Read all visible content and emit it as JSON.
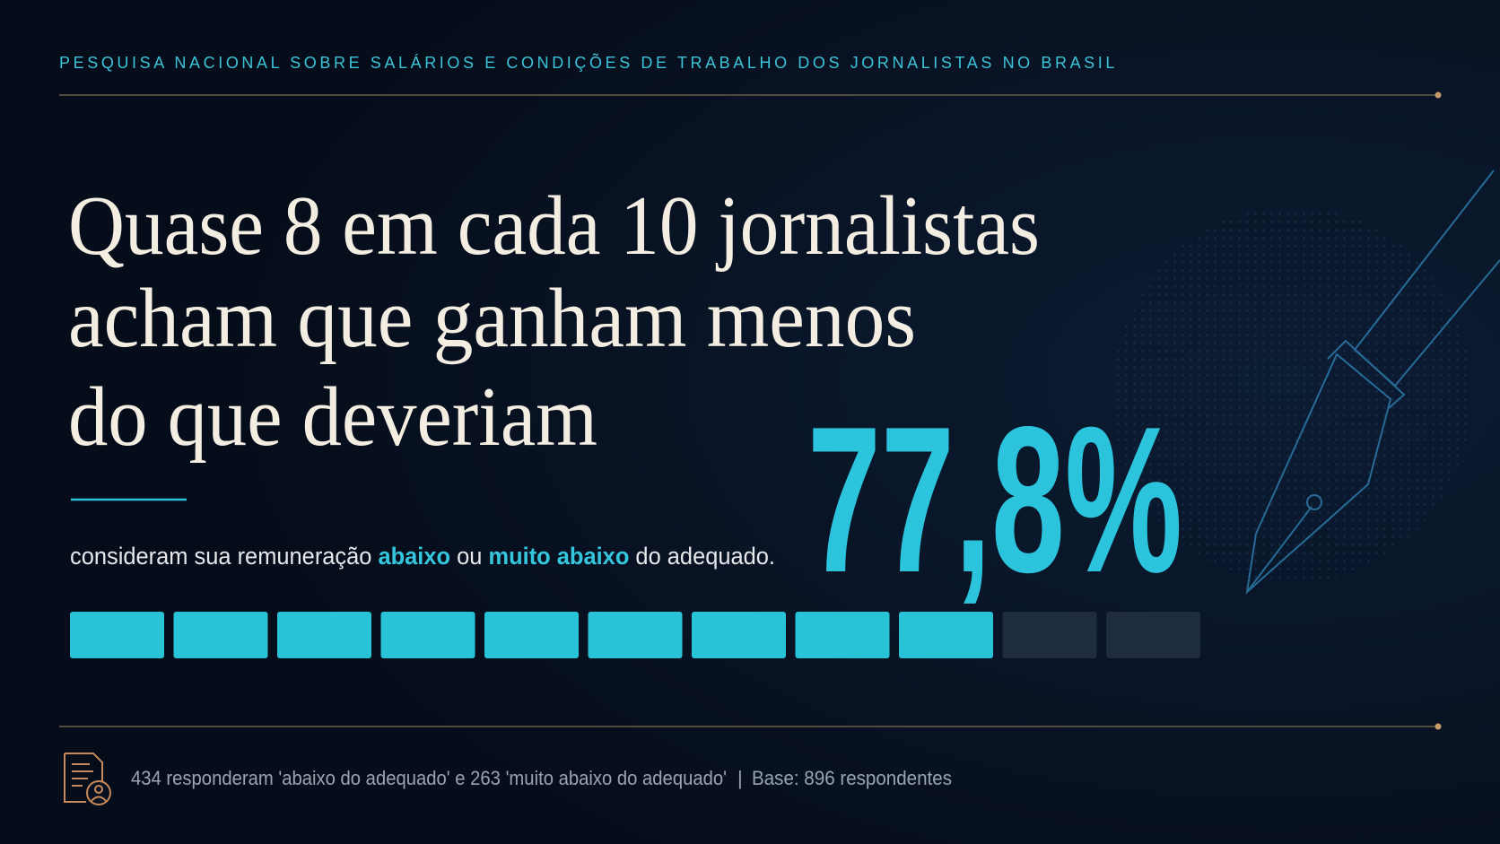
{
  "header": {
    "title": "PESQUISA NACIONAL SOBRE SALÁRIOS E CONDIÇÕES DE TRABALHO DOS JORNALISTAS NO BRASIL"
  },
  "headline": {
    "lines": [
      "Quase 8 em cada 10 jornalistas",
      "acham que ganham menos",
      "do que deveriam"
    ]
  },
  "statistic": {
    "value_label": "77,8%"
  },
  "subtitle": {
    "parts": [
      "consideram sua remuneração ",
      "abaixo",
      " ou ",
      "muito abaixo",
      " do adequado."
    ]
  },
  "footer": {
    "note": "434 responderam 'abaixo do adequado' e 263 'muito abaixo do adequado'",
    "separator": "|",
    "base": "Base: 896 respondentes"
  }
}
